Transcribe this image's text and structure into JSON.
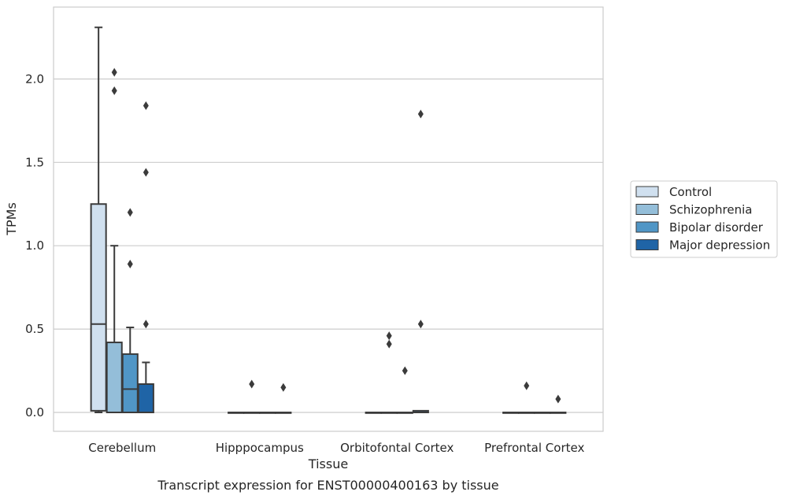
{
  "chart_data": {
    "type": "box",
    "xlabel": "Tissue",
    "ylabel": "TPMs",
    "caption": "Transcript expression for ENST00000400163 by tissue",
    "ylim": [
      -0.11,
      2.43
    ],
    "yticks": [
      0.0,
      0.5,
      1.0,
      1.5,
      2.0
    ],
    "ytick_labels": [
      "0.0",
      "0.5",
      "1.0",
      "1.5",
      "2.0"
    ],
    "grid": "horizontal",
    "legend_position": "right",
    "categories": [
      "Cerebellum",
      "Hipppocampus",
      "Orbitofontal Cortex",
      "Prefrontal Cortex"
    ],
    "series": [
      {
        "name": "Control",
        "color": "#d0e0ef",
        "boxes": [
          {
            "q1": 0.01,
            "median": 0.53,
            "q3": 1.25,
            "whisker_low": 0.0,
            "whisker_high": 2.31,
            "outliers": []
          },
          {
            "q1": 0.0,
            "median": 0.0,
            "q3": 0.0,
            "whisker_low": 0.0,
            "whisker_high": 0.0,
            "outliers": []
          },
          {
            "q1": 0.0,
            "median": 0.0,
            "q3": 0.0,
            "whisker_low": 0.0,
            "whisker_high": 0.0,
            "outliers": []
          },
          {
            "q1": 0.0,
            "median": 0.0,
            "q3": 0.0,
            "whisker_low": 0.0,
            "whisker_high": 0.0,
            "outliers": []
          }
        ]
      },
      {
        "name": "Schizophrenia",
        "color": "#94bed9",
        "boxes": [
          {
            "q1": 0.0,
            "median": 0.0,
            "q3": 0.42,
            "whisker_low": 0.0,
            "whisker_high": 1.0,
            "outliers": [
              1.93,
              2.04
            ]
          },
          {
            "q1": 0.0,
            "median": 0.0,
            "q3": 0.0,
            "whisker_low": 0.0,
            "whisker_high": 0.0,
            "outliers": [
              0.17
            ]
          },
          {
            "q1": 0.0,
            "median": 0.0,
            "q3": 0.0,
            "whisker_low": 0.0,
            "whisker_high": 0.0,
            "outliers": [
              0.41,
              0.46
            ]
          },
          {
            "q1": 0.0,
            "median": 0.0,
            "q3": 0.0,
            "whisker_low": 0.0,
            "whisker_high": 0.0,
            "outliers": [
              0.16
            ]
          }
        ]
      },
      {
        "name": "Bipolar disorder",
        "color": "#5096c6",
        "boxes": [
          {
            "q1": 0.0,
            "median": 0.14,
            "q3": 0.35,
            "whisker_low": 0.0,
            "whisker_high": 0.51,
            "outliers": [
              0.89,
              1.2
            ]
          },
          {
            "q1": 0.0,
            "median": 0.0,
            "q3": 0.0,
            "whisker_low": 0.0,
            "whisker_high": 0.0,
            "outliers": []
          },
          {
            "q1": 0.0,
            "median": 0.0,
            "q3": 0.0,
            "whisker_low": 0.0,
            "whisker_high": 0.0,
            "outliers": [
              0.25
            ]
          },
          {
            "q1": 0.0,
            "median": 0.0,
            "q3": 0.0,
            "whisker_low": 0.0,
            "whisker_high": 0.0,
            "outliers": []
          }
        ]
      },
      {
        "name": "Major depression",
        "color": "#1f64a6",
        "boxes": [
          {
            "q1": 0.0,
            "median": 0.0,
            "q3": 0.17,
            "whisker_low": 0.0,
            "whisker_high": 0.3,
            "outliers": [
              0.53,
              1.44,
              1.84
            ]
          },
          {
            "q1": 0.0,
            "median": 0.0,
            "q3": 0.0,
            "whisker_low": 0.0,
            "whisker_high": 0.0,
            "outliers": [
              0.15
            ]
          },
          {
            "q1": 0.0,
            "median": 0.0,
            "q3": 0.01,
            "whisker_low": 0.0,
            "whisker_high": 0.01,
            "outliers": [
              0.53,
              1.79
            ]
          },
          {
            "q1": 0.0,
            "median": 0.0,
            "q3": 0.0,
            "whisker_low": 0.0,
            "whisker_high": 0.0,
            "outliers": [
              0.08
            ]
          }
        ]
      }
    ]
  }
}
